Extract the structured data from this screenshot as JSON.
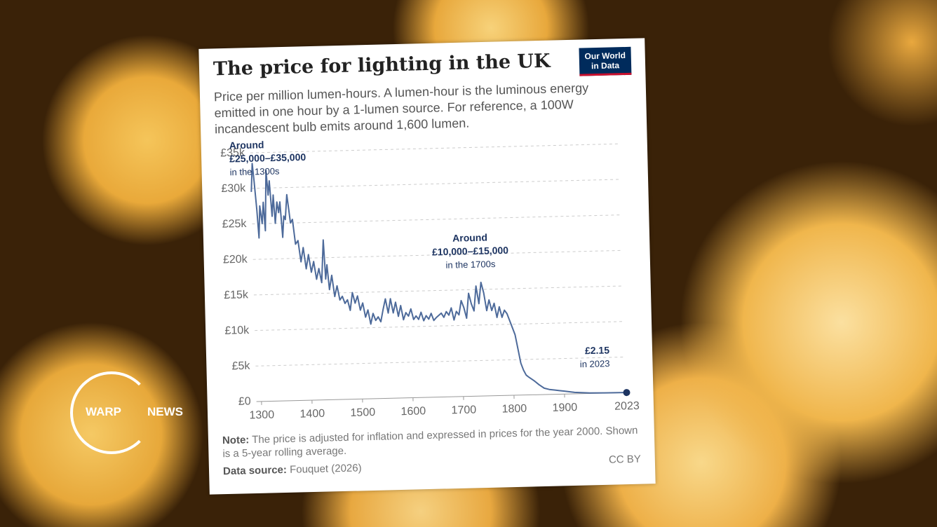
{
  "chart_data": {
    "type": "line",
    "title": "The price for lighting in the UK",
    "subtitle": "Price per million lumen-hours. A lumen-hour is the luminous energy emitted in one hour by a 1-lumen source. For reference, a 100W incandescent bulb emits around 1,600 lumen.",
    "x": [
      1290,
      1293,
      1296,
      1300,
      1303,
      1306,
      1310,
      1313,
      1316,
      1320,
      1323,
      1326,
      1330,
      1333,
      1336,
      1340,
      1343,
      1346,
      1350,
      1353,
      1356,
      1360,
      1363,
      1366,
      1370,
      1375,
      1380,
      1385,
      1390,
      1395,
      1400,
      1405,
      1410,
      1415,
      1420,
      1425,
      1430,
      1433,
      1436,
      1440,
      1445,
      1450,
      1455,
      1460,
      1465,
      1470,
      1475,
      1480,
      1485,
      1490,
      1495,
      1500,
      1505,
      1510,
      1515,
      1520,
      1525,
      1530,
      1535,
      1540,
      1545,
      1550,
      1555,
      1560,
      1565,
      1570,
      1575,
      1580,
      1585,
      1590,
      1595,
      1600,
      1605,
      1610,
      1615,
      1620,
      1625,
      1630,
      1635,
      1640,
      1645,
      1650,
      1655,
      1660,
      1665,
      1670,
      1675,
      1680,
      1685,
      1690,
      1695,
      1700,
      1705,
      1710,
      1715,
      1720,
      1725,
      1730,
      1735,
      1740,
      1745,
      1750,
      1755,
      1760,
      1765,
      1770,
      1775,
      1780,
      1785,
      1790,
      1795,
      1800,
      1805,
      1810,
      1815,
      1820,
      1825,
      1830,
      1840,
      1850,
      1860,
      1870,
      1880,
      1890,
      1900,
      1920,
      1950,
      1980,
      2000,
      2023
    ],
    "values": [
      29500,
      33500,
      31000,
      27000,
      23000,
      27500,
      25000,
      28000,
      24000,
      32500,
      29000,
      31000,
      26000,
      29000,
      25000,
      28000,
      26500,
      28000,
      23000,
      26000,
      25500,
      29000,
      27000,
      25000,
      25500,
      22000,
      22500,
      19500,
      21500,
      18500,
      20500,
      18000,
      19500,
      17000,
      18500,
      16500,
      22500,
      17000,
      19000,
      15500,
      17500,
      14500,
      16000,
      14000,
      14500,
      13500,
      14000,
      12500,
      15000,
      13500,
      14500,
      12500,
      13500,
      11500,
      12500,
      10500,
      12000,
      11000,
      11500,
      10800,
      12500,
      14000,
      12000,
      14000,
      12000,
      13500,
      11500,
      13000,
      11000,
      12000,
      11500,
      12500,
      11000,
      11500,
      11000,
      12000,
      10800,
      11500,
      11000,
      11800,
      10800,
      11200,
      11500,
      11800,
      11200,
      12000,
      11500,
      12500,
      10800,
      12000,
      11500,
      13500,
      12500,
      11000,
      14500,
      13000,
      12000,
      15500,
      13000,
      16000,
      14500,
      12000,
      13500,
      12000,
      13000,
      11000,
      12500,
      11000,
      12000,
      11500,
      10500,
      9500,
      8500,
      6500,
      4500,
      3500,
      2800,
      2500,
      2000,
      1400,
      900,
      700,
      600,
      500,
      400,
      200,
      60,
      15,
      5,
      2.15
    ],
    "color": "#4d6a9a",
    "xlim": [
      1290,
      2023
    ],
    "ylim": [
      0,
      35000
    ],
    "xticks": [
      1300,
      1400,
      1500,
      1600,
      1700,
      1800,
      1900,
      2023
    ],
    "yticks": [
      {
        "value": 0,
        "label": "£0"
      },
      {
        "value": 5000,
        "label": "£5k"
      },
      {
        "value": 10000,
        "label": "£10k"
      },
      {
        "value": 15000,
        "label": "£15k"
      },
      {
        "value": 20000,
        "label": "£20k"
      },
      {
        "value": 25000,
        "label": "£25k"
      },
      {
        "value": 30000,
        "label": "£30k"
      },
      {
        "value": 35000,
        "label": "£35k"
      }
    ],
    "grid": true,
    "annotations": [
      {
        "lines": [
          "Around",
          "£25,000–£35,000",
          "in the 1300s"
        ]
      },
      {
        "lines": [
          "Around",
          "£10,000–£15,000",
          "in the 1700s"
        ]
      },
      {
        "lines": [
          "£2.15",
          "in 2023"
        ]
      }
    ],
    "note": {
      "label": "Note:",
      "text": "The price is adjusted for inflation and expressed in prices for the year 2000. Shown is a 5-year rolling average."
    },
    "source": {
      "label": "Data source:",
      "text": "Fouquet (2026)"
    },
    "license": "CC BY"
  },
  "logo": [
    "Our World",
    "in Data"
  ],
  "watermark": [
    "WARP",
    "NEWS"
  ]
}
